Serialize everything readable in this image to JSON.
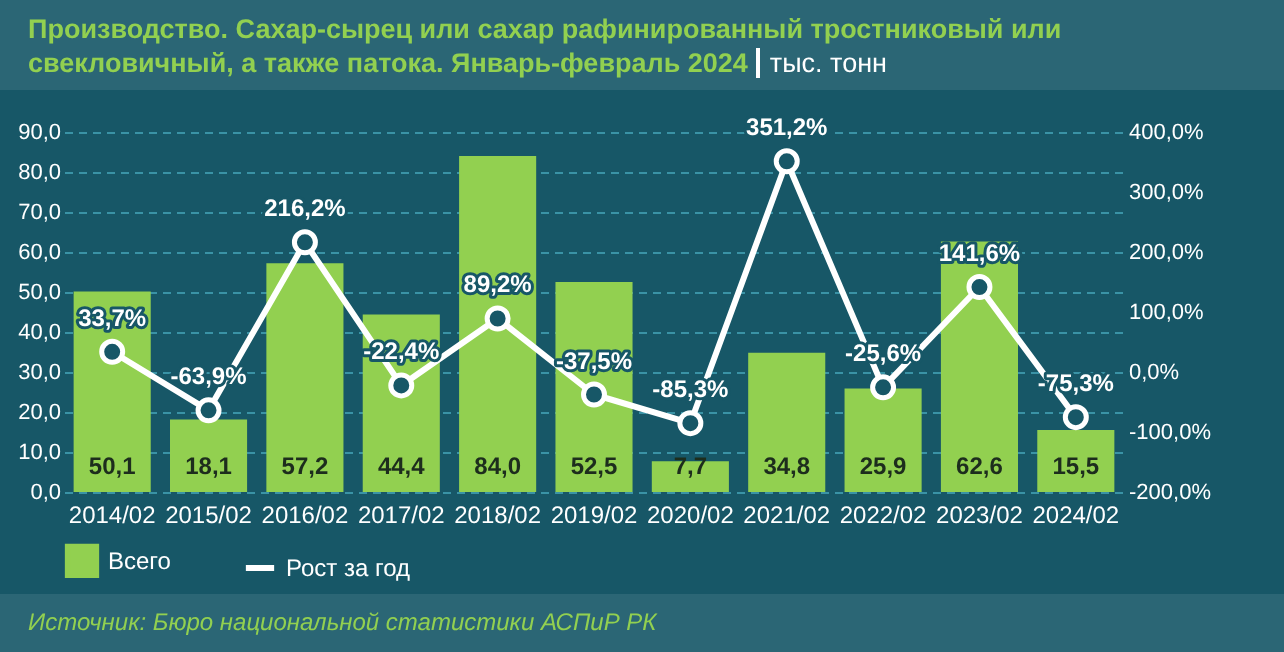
{
  "chart_data": {
    "type": "bar",
    "title": "Производство. Сахар-сырец или сахар рафинированный тростниковый или свекловичный, а также патока. Январь-февраль 2024",
    "subtitle": "тыс. тонн",
    "categories": [
      "2014/02",
      "2015/02",
      "2016/02",
      "2017/02",
      "2018/02",
      "2019/02",
      "2020/02",
      "2021/02",
      "2022/02",
      "2023/02",
      "2024/02"
    ],
    "series": [
      {
        "name": "Всего",
        "color": "#92d050",
        "values": [
          50.1,
          18.1,
          57.2,
          44.4,
          84.0,
          52.5,
          7.7,
          34.8,
          25.9,
          62.6,
          15.5
        ],
        "value_labels": [
          "50,1",
          "18,1",
          "57,2",
          "44,4",
          "84,0",
          "52,5",
          "7,7",
          "34,8",
          "25,9",
          "62,6",
          "15,5"
        ]
      },
      {
        "name": "Рост за год",
        "type": "line",
        "axis": "y2",
        "color": "#ffffff",
        "marker": "circle",
        "values": [
          33.7,
          -63.9,
          216.2,
          -22.4,
          89.2,
          -37.5,
          -85.3,
          351.2,
          -25.6,
          141.6,
          -75.3
        ],
        "value_labels": [
          "33,7%",
          "-63,9%",
          "216,2%",
          "-22,4%",
          "89,2%",
          "-37,5%",
          "-85,3%",
          "351,2%",
          "-25,6%",
          "141,6%",
          "-75,3%"
        ]
      }
    ],
    "ylim": [
      0,
      90
    ],
    "yticks": [
      {
        "value": 0,
        "label": "0,0"
      },
      {
        "value": 10,
        "label": "10,0"
      },
      {
        "value": 20,
        "label": "20,0"
      },
      {
        "value": 30,
        "label": "30,0"
      },
      {
        "value": 40,
        "label": "40,0"
      },
      {
        "value": 50,
        "label": "50,0"
      },
      {
        "value": 60,
        "label": "60,0"
      },
      {
        "value": 70,
        "label": "70,0"
      },
      {
        "value": 80,
        "label": "80,0"
      },
      {
        "value": 90,
        "label": "90,0"
      }
    ],
    "y2lim": [
      -200,
      400
    ],
    "y2ticks": [
      {
        "value": -200,
        "label": "-200,0%"
      },
      {
        "value": -100,
        "label": "-100,0%"
      },
      {
        "value": 0,
        "label": "0,0%"
      },
      {
        "value": 100,
        "label": "100,0%"
      },
      {
        "value": 200,
        "label": "200,0%"
      },
      {
        "value": 300,
        "label": "300,0%"
      },
      {
        "value": 400,
        "label": "400,0%"
      }
    ],
    "grid": "y",
    "legend": "bottom",
    "annotations": [
      "Источник: Бюро национальной статистики АСПиР РК"
    ]
  }
}
